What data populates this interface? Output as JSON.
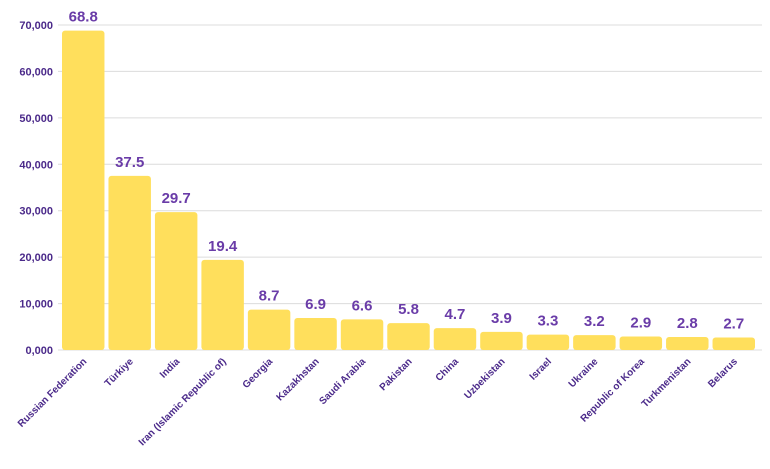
{
  "chart_data": {
    "type": "bar",
    "categories": [
      "Russian Federation",
      "Türkiye",
      "India",
      "Iran (Islamic Republic of)",
      "Georgia",
      "Kazakhstan",
      "Saudi Arabia",
      "Pakistan",
      "China",
      "Uzbekistan",
      "Israel",
      "Ukraine",
      "Republic of Korea",
      "Turkmenistan",
      "Belarus"
    ],
    "values": [
      68800,
      37500,
      29700,
      19400,
      8700,
      6900,
      6600,
      5800,
      4700,
      3900,
      3300,
      3200,
      2900,
      2800,
      2700
    ],
    "data_labels": [
      "68.8",
      "37.5",
      "29.7",
      "19.4",
      "8.7",
      "6.9",
      "6.6",
      "5.8",
      "4.7",
      "3.9",
      "3.3",
      "3.2",
      "2.9",
      "2.8",
      "2.7"
    ],
    "y_ticks": [
      "0,000",
      "10,000",
      "20,000",
      "30,000",
      "40,000",
      "50,000",
      "60,000",
      "70,000"
    ],
    "ylim": [
      0,
      70000
    ],
    "grid": true,
    "bar_color": "#ffdf5c",
    "label_color": "#6a3ca8",
    "tick_color": "#4b2a8a"
  }
}
